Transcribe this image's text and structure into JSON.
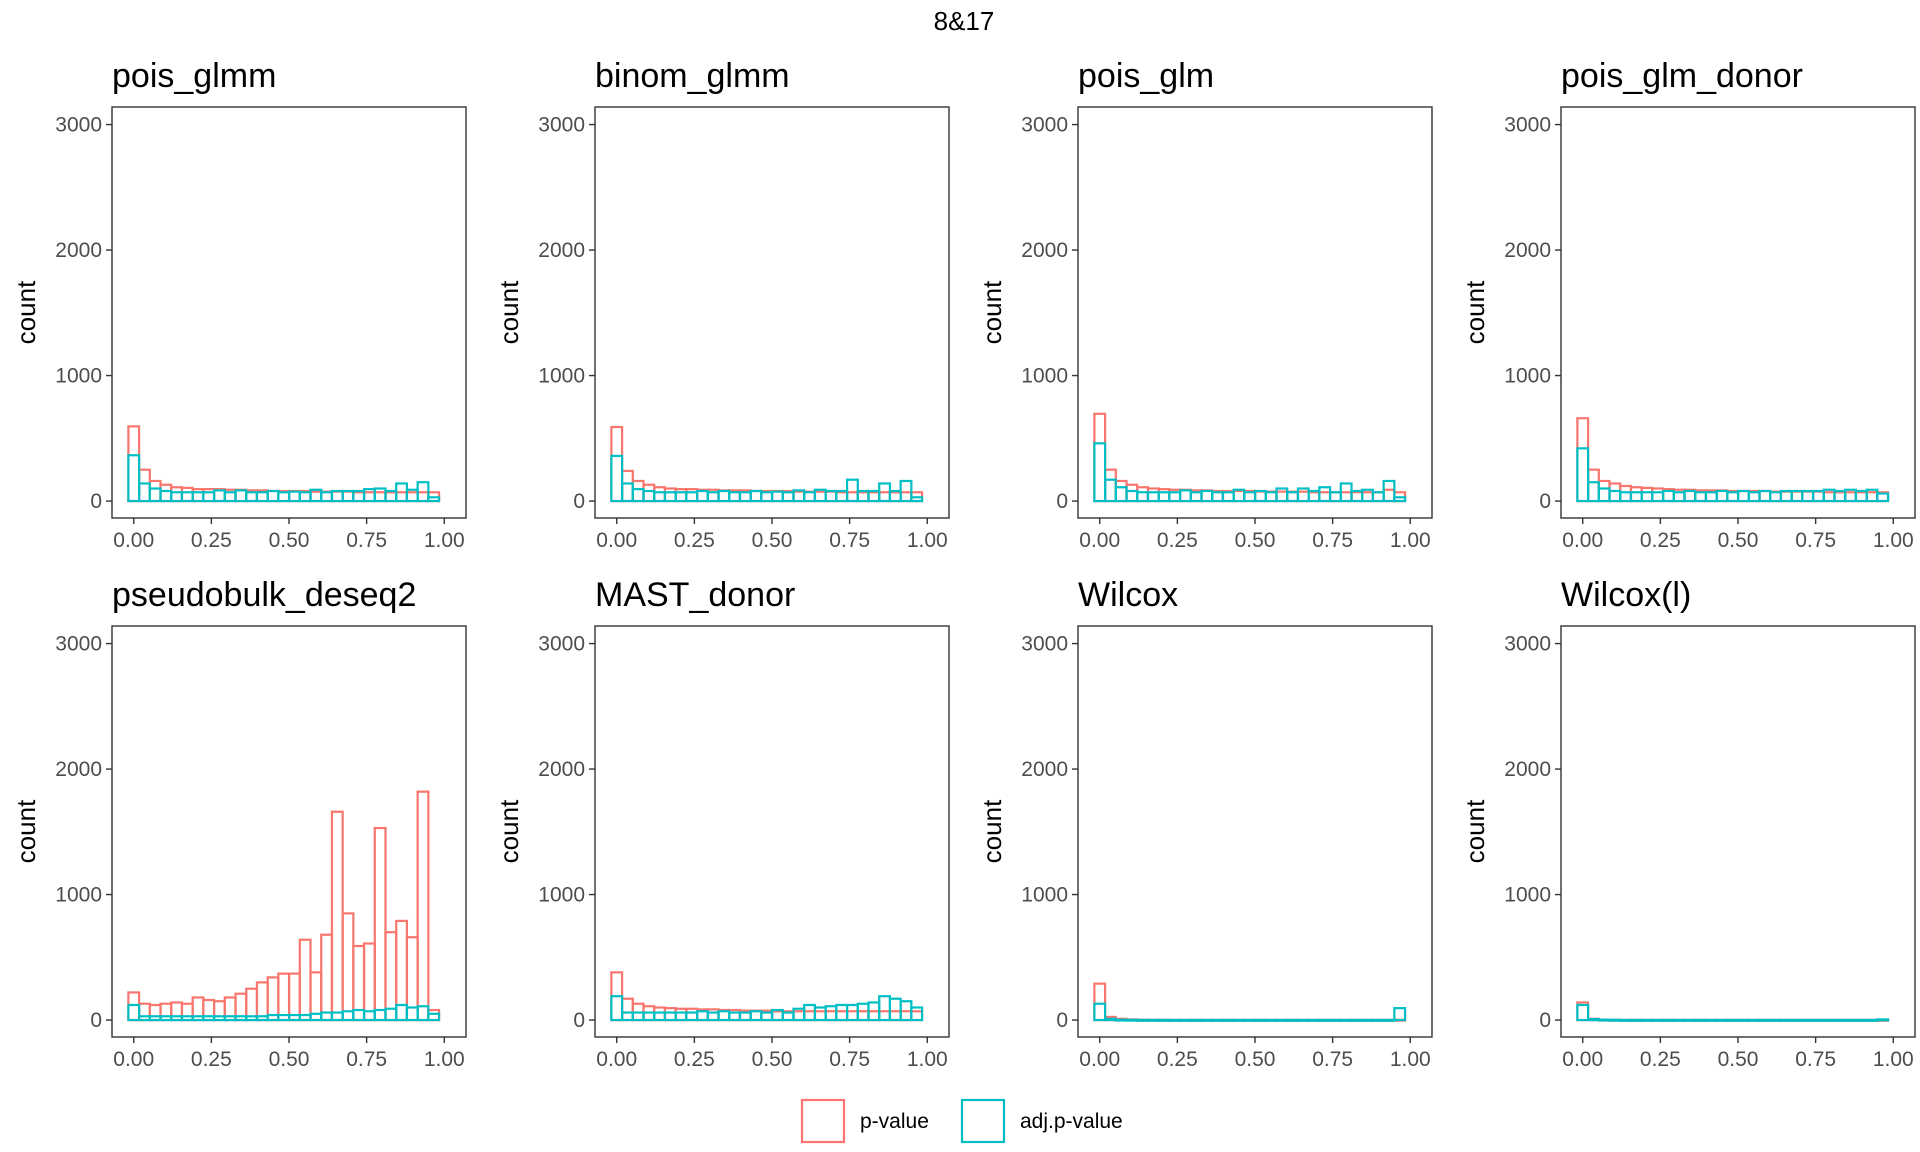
{
  "figure": {
    "title": "8&17",
    "legend": [
      {
        "label": "p-value",
        "color": "#F8766D"
      },
      {
        "label": "adj.p-value",
        "color": "#00BFC4"
      }
    ]
  },
  "chart_data": [
    {
      "type": "bar",
      "title": "pois_glmm",
      "xlabel": "",
      "ylabel": "count",
      "xlim": [
        -0.07,
        1.07
      ],
      "ylim": [
        -135,
        3140
      ],
      "xticks": [
        "0.00",
        "0.25",
        "0.50",
        "0.75",
        "1.00"
      ],
      "yticks": [
        "0",
        "1000",
        "2000",
        "3000"
      ],
      "bin_width": 0.0345,
      "series": [
        {
          "name": "p-value",
          "values": [
            595,
            250,
            160,
            130,
            110,
            105,
            95,
            95,
            95,
            90,
            90,
            85,
            85,
            80,
            80,
            80,
            80,
            75,
            75,
            75,
            75,
            70,
            70,
            70,
            70,
            70,
            70,
            70,
            70
          ]
        },
        {
          "name": "adj.p-value",
          "values": [
            365,
            140,
            100,
            80,
            70,
            70,
            70,
            70,
            85,
            70,
            85,
            70,
            70,
            80,
            70,
            75,
            70,
            90,
            70,
            80,
            80,
            80,
            95,
            100,
            80,
            140,
            90,
            150,
            30
          ]
        }
      ]
    },
    {
      "type": "bar",
      "title": "binom_glmm",
      "xlabel": "",
      "ylabel": "count",
      "xlim": [
        -0.07,
        1.07
      ],
      "ylim": [
        -135,
        3140
      ],
      "xticks": [
        "0.00",
        "0.25",
        "0.50",
        "0.75",
        "1.00"
      ],
      "yticks": [
        "0",
        "1000",
        "2000",
        "3000"
      ],
      "bin_width": 0.0345,
      "series": [
        {
          "name": "p-value",
          "values": [
            590,
            240,
            160,
            130,
            110,
            100,
            95,
            95,
            90,
            90,
            85,
            85,
            85,
            80,
            80,
            80,
            80,
            75,
            75,
            75,
            75,
            70,
            70,
            70,
            70,
            70,
            70,
            70,
            70
          ]
        },
        {
          "name": "adj.p-value",
          "values": [
            360,
            140,
            95,
            80,
            70,
            70,
            70,
            70,
            80,
            70,
            80,
            70,
            70,
            80,
            70,
            75,
            70,
            85,
            70,
            90,
            80,
            80,
            170,
            80,
            80,
            140,
            80,
            160,
            30
          ]
        }
      ]
    },
    {
      "type": "bar",
      "title": "pois_glm",
      "xlabel": "",
      "ylabel": "count",
      "xlim": [
        -0.07,
        1.07
      ],
      "ylim": [
        -135,
        3140
      ],
      "xticks": [
        "0.00",
        "0.25",
        "0.50",
        "0.75",
        "1.00"
      ],
      "yticks": [
        "0",
        "1000",
        "2000",
        "3000"
      ],
      "bin_width": 0.0345,
      "series": [
        {
          "name": "p-value",
          "values": [
            695,
            250,
            160,
            130,
            110,
            100,
            95,
            90,
            90,
            85,
            85,
            80,
            80,
            80,
            80,
            75,
            75,
            75,
            75,
            75,
            70,
            70,
            70,
            70,
            70,
            70,
            70,
            90,
            70
          ]
        },
        {
          "name": "adj.p-value",
          "values": [
            460,
            170,
            110,
            80,
            70,
            70,
            70,
            70,
            85,
            70,
            80,
            70,
            70,
            90,
            70,
            80,
            70,
            100,
            70,
            100,
            80,
            110,
            70,
            140,
            80,
            90,
            70,
            160,
            30
          ]
        }
      ]
    },
    {
      "type": "bar",
      "title": "pois_glm_donor",
      "xlabel": "",
      "ylabel": "count",
      "xlim": [
        -0.07,
        1.07
      ],
      "ylim": [
        -135,
        3140
      ],
      "xticks": [
        "0.00",
        "0.25",
        "0.50",
        "0.75",
        "1.00"
      ],
      "yticks": [
        "0",
        "1000",
        "2000",
        "3000"
      ],
      "bin_width": 0.0345,
      "series": [
        {
          "name": "p-value",
          "values": [
            660,
            250,
            160,
            140,
            120,
            110,
            105,
            100,
            95,
            90,
            90,
            85,
            85,
            85,
            80,
            80,
            80,
            80,
            75,
            75,
            75,
            75,
            75,
            70,
            70,
            70,
            70,
            70,
            70
          ]
        },
        {
          "name": "adj.p-value",
          "values": [
            420,
            150,
            100,
            80,
            70,
            70,
            70,
            70,
            80,
            70,
            80,
            70,
            70,
            80,
            70,
            80,
            70,
            80,
            70,
            80,
            80,
            80,
            80,
            90,
            80,
            90,
            80,
            90,
            60
          ]
        }
      ]
    },
    {
      "type": "bar",
      "title": "pseudobulk_deseq2",
      "xlabel": "",
      "ylabel": "count",
      "xlim": [
        -0.07,
        1.07
      ],
      "ylim": [
        -135,
        3140
      ],
      "xticks": [
        "0.00",
        "0.25",
        "0.50",
        "0.75",
        "1.00"
      ],
      "yticks": [
        "0",
        "1000",
        "2000",
        "3000"
      ],
      "bin_width": 0.0345,
      "series": [
        {
          "name": "p-value",
          "values": [
            220,
            130,
            120,
            130,
            140,
            130,
            180,
            160,
            150,
            180,
            210,
            250,
            300,
            340,
            370,
            370,
            640,
            380,
            680,
            1660,
            850,
            590,
            610,
            1530,
            700,
            790,
            660,
            1820,
            80
          ]
        },
        {
          "name": "adj.p-value",
          "values": [
            120,
            30,
            30,
            30,
            30,
            30,
            30,
            30,
            30,
            30,
            30,
            30,
            30,
            40,
            40,
            40,
            40,
            50,
            60,
            60,
            70,
            80,
            70,
            80,
            90,
            120,
            100,
            110,
            50
          ]
        }
      ]
    },
    {
      "type": "bar",
      "title": "MAST_donor",
      "xlabel": "",
      "ylabel": "count",
      "xlim": [
        -0.07,
        1.07
      ],
      "ylim": [
        -135,
        3140
      ],
      "xticks": [
        "0.00",
        "0.25",
        "0.50",
        "0.75",
        "1.00"
      ],
      "yticks": [
        "0",
        "1000",
        "2000",
        "3000"
      ],
      "bin_width": 0.0345,
      "series": [
        {
          "name": "p-value",
          "values": [
            380,
            170,
            130,
            110,
            100,
            95,
            90,
            90,
            85,
            85,
            80,
            80,
            75,
            75,
            75,
            70,
            70,
            70,
            70,
            70,
            70,
            70,
            70,
            70,
            70,
            70,
            70,
            70,
            70
          ]
        },
        {
          "name": "adj.p-value",
          "values": [
            190,
            60,
            60,
            60,
            60,
            60,
            60,
            60,
            70,
            60,
            70,
            60,
            60,
            70,
            60,
            80,
            60,
            90,
            120,
            100,
            110,
            120,
            120,
            130,
            140,
            190,
            170,
            150,
            100
          ]
        }
      ]
    },
    {
      "type": "bar",
      "title": "Wilcox",
      "xlabel": "",
      "ylabel": "count",
      "xlim": [
        -0.07,
        1.07
      ],
      "ylim": [
        -135,
        3140
      ],
      "xticks": [
        "0.00",
        "0.25",
        "0.50",
        "0.75",
        "1.00"
      ],
      "yticks": [
        "0",
        "1000",
        "2000",
        "3000"
      ],
      "bin_width": 0.0345,
      "series": [
        {
          "name": "p-value",
          "values": [
            290,
            25,
            10,
            5,
            3,
            2,
            2,
            1,
            1,
            1,
            1,
            1,
            1,
            1,
            1,
            1,
            1,
            1,
            1,
            1,
            1,
            1,
            1,
            1,
            1,
            1,
            1,
            1,
            2
          ]
        },
        {
          "name": "adj.p-value",
          "values": [
            130,
            10,
            3,
            2,
            1,
            1,
            1,
            1,
            1,
            1,
            1,
            1,
            1,
            1,
            1,
            1,
            1,
            1,
            1,
            1,
            1,
            1,
            1,
            1,
            1,
            1,
            1,
            1,
            95
          ]
        }
      ]
    },
    {
      "type": "bar",
      "title": "Wilcox(l)",
      "xlabel": "",
      "ylabel": "count",
      "xlim": [
        -0.07,
        1.07
      ],
      "ylim": [
        -135,
        3140
      ],
      "xticks": [
        "0.00",
        "0.25",
        "0.50",
        "0.75",
        "1.00"
      ],
      "yticks": [
        "0",
        "1000",
        "2000",
        "3000"
      ],
      "bin_width": 0.0345,
      "series": [
        {
          "name": "p-value",
          "values": [
            140,
            10,
            3,
            2,
            1,
            1,
            1,
            1,
            1,
            1,
            1,
            1,
            1,
            1,
            1,
            1,
            1,
            1,
            1,
            1,
            1,
            1,
            1,
            1,
            1,
            1,
            1,
            1,
            1
          ]
        },
        {
          "name": "adj.p-value",
          "values": [
            120,
            8,
            3,
            2,
            1,
            1,
            1,
            1,
            1,
            1,
            1,
            1,
            1,
            1,
            1,
            1,
            1,
            1,
            1,
            1,
            1,
            1,
            1,
            1,
            1,
            1,
            1,
            1,
            5
          ]
        }
      ]
    }
  ]
}
